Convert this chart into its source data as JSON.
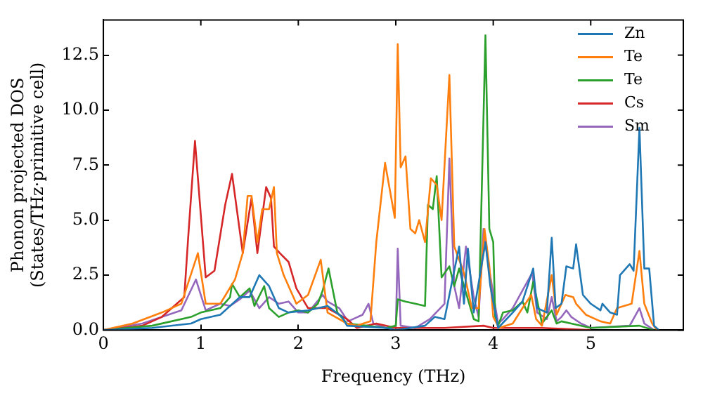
{
  "chart_data": {
    "type": "line",
    "xlabel": "Frequency (THz)",
    "ylabel": "Phonon projected DOS\n(States/THz·primitive cell)",
    "xlim": [
      0,
      5.95
    ],
    "ylim": [
      0,
      14.1
    ],
    "xticks": [
      0,
      1,
      2,
      3,
      4,
      5
    ],
    "yticks": [
      {
        "value": 0,
        "label": "0.0"
      },
      {
        "value": 2.5,
        "label": "2.5"
      },
      {
        "value": 5,
        "label": "5.0"
      },
      {
        "value": 7.5,
        "label": "7.5"
      },
      {
        "value": 10,
        "label": "10.0"
      },
      {
        "value": 12.5,
        "label": "12.5"
      }
    ],
    "grid": false,
    "legend": "top right",
    "marker": "none",
    "line_style": "solid",
    "series": [
      {
        "name": "Zn",
        "color": "#1f77b4",
        "x": [
          0,
          0.5,
          0.9,
          1.0,
          1.2,
          1.4,
          1.5,
          1.6,
          1.7,
          1.8,
          1.9,
          2.1,
          2.3,
          2.45,
          2.5,
          2.9,
          3.0,
          3.3,
          3.4,
          3.5,
          3.65,
          3.7,
          3.74,
          3.8,
          3.92,
          3.97,
          4.05,
          4.2,
          4.3,
          4.41,
          4.45,
          4.55,
          4.6,
          4.64,
          4.7,
          4.75,
          4.82,
          4.85,
          4.92,
          5.0,
          5.1,
          5.12,
          5.2,
          5.27,
          5.3,
          5.4,
          5.44,
          5.5,
          5.55,
          5.6,
          5.65,
          5.7
        ],
        "values": [
          0,
          0.1,
          0.3,
          0.5,
          0.7,
          1.5,
          1.5,
          2.5,
          2.0,
          1.0,
          0.8,
          0.9,
          1.1,
          0.6,
          0.2,
          0.1,
          0,
          0.2,
          0.6,
          0.5,
          3.8,
          1.2,
          3.7,
          0.8,
          4.0,
          2.0,
          0.1,
          0.8,
          1.3,
          2.8,
          1.0,
          0.8,
          4.2,
          1.0,
          1.2,
          2.9,
          2.8,
          3.9,
          1.6,
          1.2,
          0.9,
          1.2,
          0.8,
          0.7,
          2.5,
          3.0,
          2.7,
          9.2,
          2.8,
          2.8,
          0.2,
          0
        ]
      },
      {
        "name": "Te",
        "color": "#ff7f0e",
        "x": [
          0,
          0.3,
          0.6,
          0.8,
          0.97,
          1.05,
          1.2,
          1.35,
          1.43,
          1.48,
          1.52,
          1.58,
          1.63,
          1.7,
          1.75,
          1.78,
          1.85,
          1.98,
          2.1,
          2.23,
          2.3,
          2.5,
          2.6,
          2.74,
          2.8,
          2.89,
          2.99,
          3.02,
          3.05,
          3.1,
          3.15,
          3.2,
          3.24,
          3.3,
          3.36,
          3.42,
          3.47,
          3.55,
          3.6,
          3.7,
          3.78,
          3.85,
          3.91,
          3.96,
          4.0,
          4.06,
          4.2,
          4.3,
          4.39,
          4.44,
          4.5,
          4.6,
          4.65,
          4.74,
          4.82,
          4.85,
          4.95,
          5.1,
          5.2,
          5.27,
          5.42,
          5.5,
          5.55,
          5.63,
          5.68
        ],
        "values": [
          0,
          0.3,
          0.8,
          1.2,
          3.5,
          1.2,
          1.2,
          2.3,
          3.5,
          6.1,
          6.1,
          4.0,
          5.5,
          5.5,
          6.5,
          3.5,
          2.5,
          1.2,
          1.6,
          3.2,
          0.8,
          0.3,
          0.2,
          0.4,
          4.0,
          7.6,
          5.1,
          13.0,
          7.4,
          7.9,
          4.6,
          4.4,
          5.0,
          4.0,
          6.9,
          6.6,
          5.0,
          11.6,
          3.8,
          2.6,
          1.0,
          1.0,
          4.6,
          2.9,
          0.6,
          0.1,
          0.3,
          1.0,
          1.6,
          0.5,
          0.2,
          2.5,
          0.7,
          1.6,
          1.5,
          1.2,
          0.7,
          0.4,
          0.3,
          1.0,
          1.2,
          3.6,
          1.2,
          0.3,
          0
        ]
      },
      {
        "name": "Te",
        "color": "#2ca02c",
        "x": [
          0,
          0.5,
          0.9,
          1.0,
          1.2,
          1.3,
          1.32,
          1.4,
          1.5,
          1.55,
          1.65,
          1.7,
          1.8,
          1.9,
          2.0,
          2.1,
          2.2,
          2.25,
          2.31,
          2.4,
          2.5,
          2.7,
          2.9,
          3.0,
          3.02,
          3.1,
          3.2,
          3.3,
          3.33,
          3.38,
          3.42,
          3.47,
          3.55,
          3.6,
          3.65,
          3.7,
          3.8,
          3.85,
          3.92,
          3.96,
          4.0,
          4.02,
          4.05,
          4.1,
          4.2,
          4.3,
          4.35,
          4.41,
          4.5,
          4.6,
          4.65,
          4.7,
          4.8,
          5.0,
          5.5,
          5.65
        ],
        "values": [
          0,
          0.2,
          0.6,
          0.8,
          1.0,
          1.5,
          2.1,
          1.5,
          1.9,
          1.1,
          2.0,
          1.0,
          0.6,
          0.8,
          0.9,
          0.8,
          1.2,
          1.8,
          2.8,
          0.8,
          0.3,
          0.2,
          0.1,
          0.2,
          1.4,
          1.3,
          1.2,
          1.1,
          5.7,
          5.5,
          7.0,
          2.4,
          2.9,
          2.0,
          2.8,
          2.0,
          0.5,
          0.4,
          13.4,
          4.6,
          4.0,
          0.6,
          0.2,
          0.8,
          0.9,
          1.3,
          0.8,
          2.2,
          0.3,
          0.9,
          0.3,
          0.4,
          0.3,
          0.1,
          0.2,
          0
        ]
      },
      {
        "name": "Cs",
        "color": "#d62728",
        "x": [
          0,
          0.4,
          0.6,
          0.83,
          0.87,
          0.94,
          1.05,
          1.14,
          1.25,
          1.32,
          1.43,
          1.52,
          1.58,
          1.67,
          1.72,
          1.75,
          1.81,
          1.9,
          1.98,
          2.1,
          2.3,
          2.5,
          2.6,
          2.8,
          3.0,
          3.5,
          3.9,
          4.0,
          4.5,
          5.0
        ],
        "values": [
          0,
          0.2,
          0.6,
          1.5,
          4.2,
          8.6,
          2.4,
          2.7,
          5.7,
          7.1,
          3.5,
          6.0,
          3.5,
          6.5,
          6.0,
          3.8,
          3.5,
          3.1,
          1.9,
          1.0,
          1.0,
          0.5,
          0.1,
          0.3,
          0.1,
          0.1,
          0.2,
          0.1,
          0.1,
          0
        ]
      },
      {
        "name": "Sm",
        "color": "#9467bd",
        "x": [
          0,
          0.4,
          0.8,
          0.95,
          1.05,
          1.2,
          1.3,
          1.4,
          1.5,
          1.6,
          1.7,
          1.8,
          1.9,
          2.0,
          2.1,
          2.25,
          2.3,
          2.42,
          2.51,
          2.66,
          2.72,
          2.77,
          2.9,
          3.0,
          3.02,
          3.05,
          3.2,
          3.35,
          3.5,
          3.55,
          3.6,
          3.65,
          3.72,
          3.8,
          3.85,
          3.9,
          3.95,
          4.05,
          4.1,
          4.2,
          4.3,
          4.4,
          4.45,
          4.55,
          4.6,
          4.65,
          4.7,
          4.75,
          4.8,
          4.9,
          5.0,
          5.4,
          5.5,
          5.55,
          5.65
        ],
        "values": [
          0,
          0.3,
          0.9,
          2.3,
          0.9,
          1.2,
          1.1,
          1.4,
          1.8,
          1.0,
          1.5,
          1.2,
          1.3,
          0.8,
          0.8,
          1.6,
          1.3,
          1.0,
          0.4,
          0.7,
          1.2,
          0.3,
          0.1,
          0.1,
          3.7,
          0.2,
          0.1,
          0.5,
          1.2,
          7.8,
          2.0,
          1.0,
          3.8,
          1.5,
          0.6,
          4.6,
          3.0,
          0.3,
          0.5,
          1.0,
          1.8,
          2.6,
          0.8,
          0.5,
          1.5,
          0.4,
          0.6,
          0.9,
          0.6,
          0.3,
          0.1,
          0.2,
          1.0,
          0.3,
          0
        ]
      }
    ]
  }
}
